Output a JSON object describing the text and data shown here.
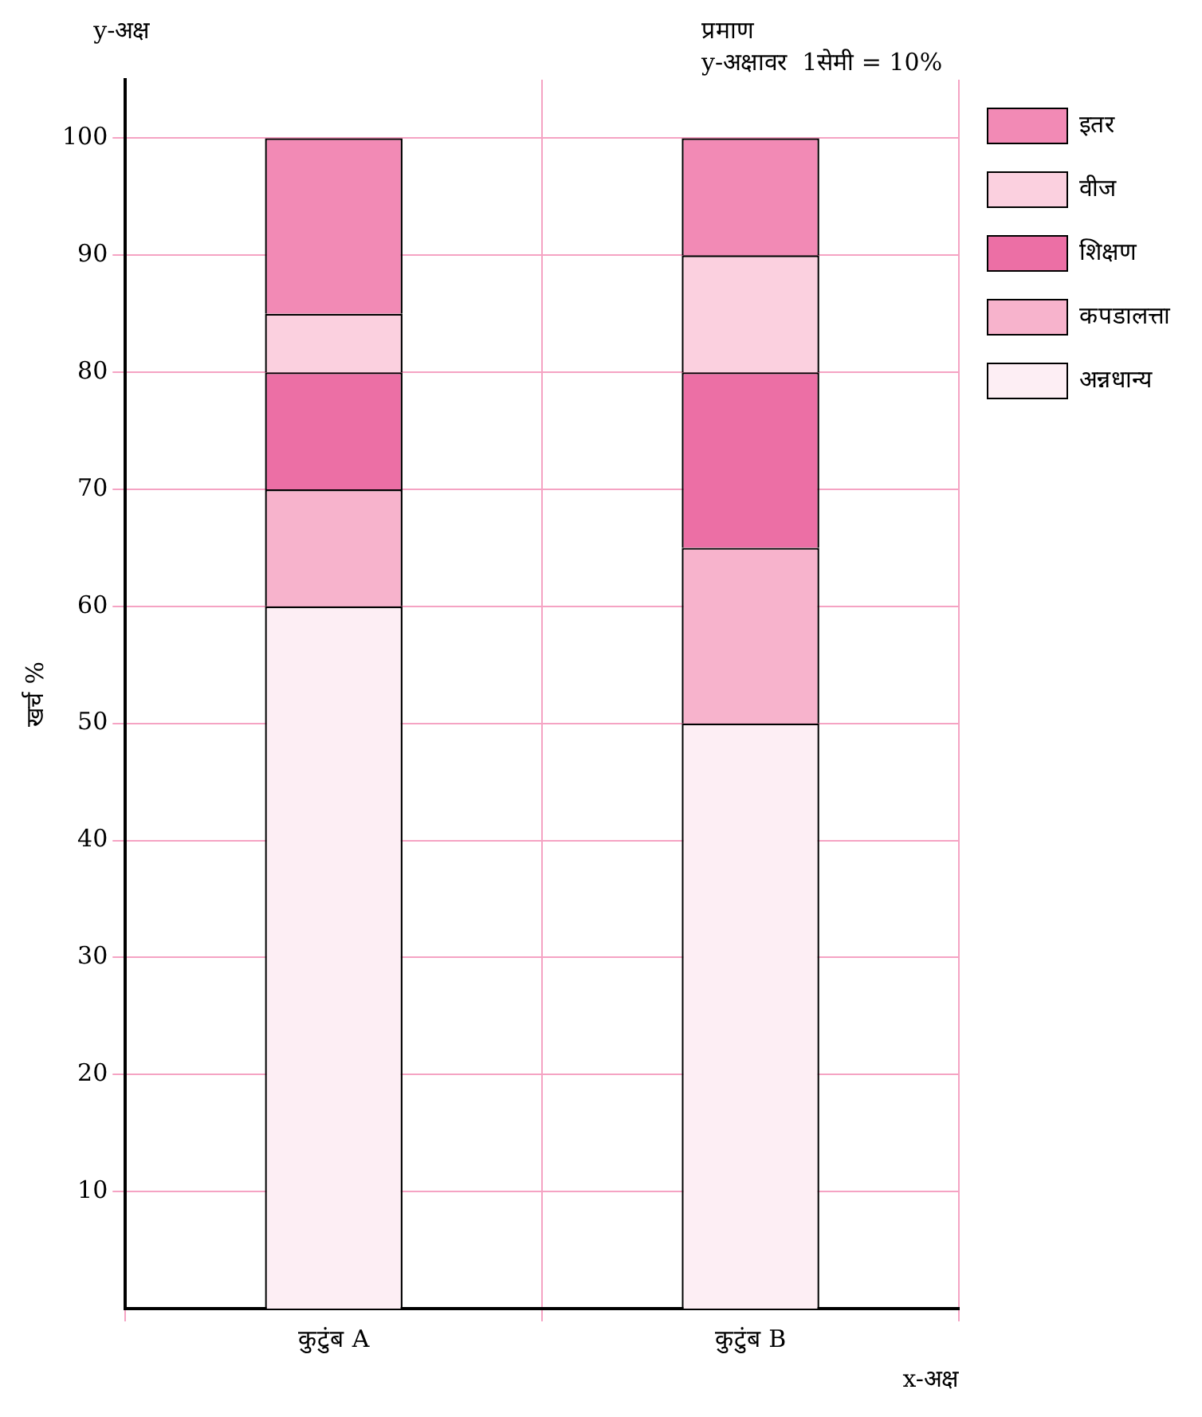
{
  "chart_data": {
    "type": "bar",
    "stacked": true,
    "xlabel": "x-अक्ष",
    "ylabel": "खर्च %",
    "annotations": [
      "y-अक्ष",
      "प्रमाण",
      "y-अक्षावर  1सेमी = 10%"
    ],
    "categories": [
      "कुटुंब A",
      "कुटुंब B"
    ],
    "series": [
      {
        "name": "अन्नधान्य",
        "color": "#fdeef4",
        "values": [
          60,
          50
        ]
      },
      {
        "name": "कपडालत्ता",
        "color": "#f7b3cc",
        "values": [
          10,
          15
        ]
      },
      {
        "name": "शिक्षण",
        "color": "#ec6fa5",
        "values": [
          10,
          15
        ]
      },
      {
        "name": "वीज",
        "color": "#fbd0df",
        "values": [
          5,
          10
        ]
      },
      {
        "name": "इतर",
        "color": "#f28ab5",
        "values": [
          15,
          10
        ]
      }
    ],
    "ylim": [
      0,
      105
    ],
    "yticks": [
      10,
      20,
      30,
      40,
      50,
      60,
      70,
      80,
      90,
      100
    ],
    "grid": true,
    "legend": "top right"
  }
}
